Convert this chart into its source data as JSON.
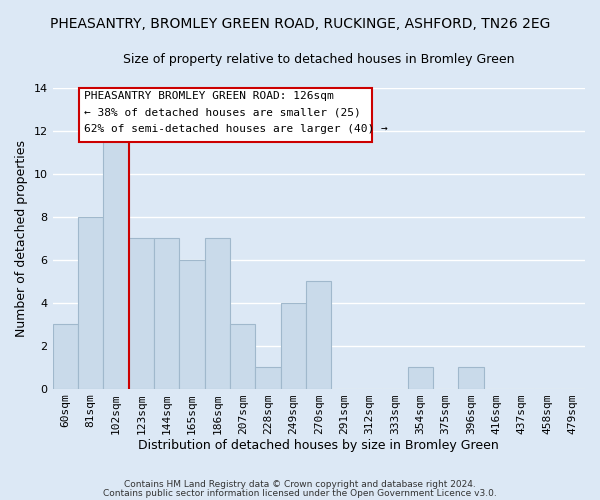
{
  "title1": "PHEASANTRY, BROMLEY GREEN ROAD, RUCKINGE, ASHFORD, TN26 2EG",
  "title2": "Size of property relative to detached houses in Bromley Green",
  "xlabel": "Distribution of detached houses by size in Bromley Green",
  "ylabel": "Number of detached properties",
  "bin_labels": [
    "60sqm",
    "81sqm",
    "102sqm",
    "123sqm",
    "144sqm",
    "165sqm",
    "186sqm",
    "207sqm",
    "228sqm",
    "249sqm",
    "270sqm",
    "291sqm",
    "312sqm",
    "333sqm",
    "354sqm",
    "375sqm",
    "396sqm",
    "416sqm",
    "437sqm",
    "458sqm",
    "479sqm"
  ],
  "bar_heights": [
    3,
    8,
    12,
    7,
    7,
    6,
    7,
    3,
    1,
    4,
    5,
    0,
    0,
    0,
    1,
    0,
    1,
    0,
    0,
    0,
    0
  ],
  "bar_color": "#c9daea",
  "bar_edge_color": "#a0b8cc",
  "vline_color": "#cc0000",
  "ylim": [
    0,
    14
  ],
  "yticks": [
    0,
    2,
    4,
    6,
    8,
    10,
    12,
    14
  ],
  "annotation_title": "PHEASANTRY BROMLEY GREEN ROAD: 126sqm",
  "annotation_line2": "← 38% of detached houses are smaller (25)",
  "annotation_line3": "62% of semi-detached houses are larger (40) →",
  "footer1": "Contains HM Land Registry data © Crown copyright and database right 2024.",
  "footer2": "Contains public sector information licensed under the Open Government Licence v3.0.",
  "background_color": "#dce8f5",
  "grid_color": "#ffffff",
  "title_fontsize": 10,
  "subtitle_fontsize": 9,
  "axis_label_fontsize": 9,
  "tick_fontsize": 8
}
